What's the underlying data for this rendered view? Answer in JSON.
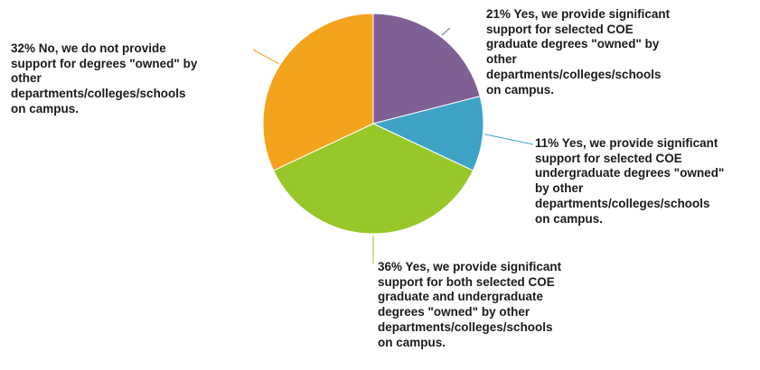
{
  "chart_data": {
    "type": "pie",
    "start_angle_deg": 0,
    "direction": "clockwise",
    "slices": [
      {
        "value": 21,
        "label": "21% Yes, we provide significant\nsupport for selected COE\ngraduate degrees \"owned\" by\nother\ndepartments/colleges/schools\non campus.",
        "color": "#7f6096"
      },
      {
        "value": 11,
        "label": "11% Yes, we provide significant\nsupport for selected COE\nundergraduate degrees \"owned\"\nby other\ndepartments/colleges/schools\non campus.",
        "color": "#3fa3c6"
      },
      {
        "value": 36,
        "label": "36% Yes, we provide significant\nsupport for both selected COE\ngraduate and undergraduate\ndegrees \"owned\" by other\ndepartments/colleges/schools\non campus.",
        "color": "#97c729"
      },
      {
        "value": 32,
        "label": "32% No, we do not provide\nsupport for degrees \"owned\" by\nother\ndepartments/colleges/schools\non campus.",
        "color": "#f4a31c"
      }
    ]
  }
}
